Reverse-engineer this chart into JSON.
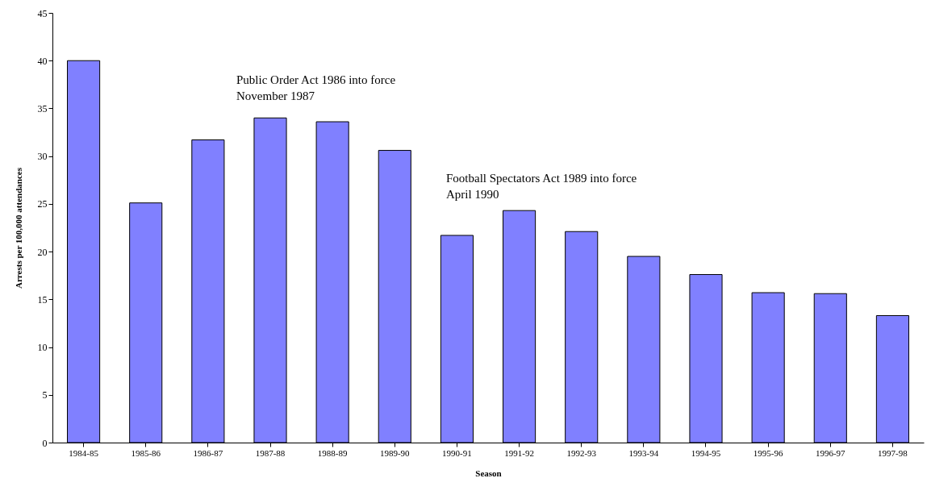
{
  "chart_data": {
    "type": "bar",
    "xlabel": "Season",
    "ylabel": "Arrests per 100,000 attendances",
    "categories": [
      "1984-85",
      "1985-86",
      "1986-87",
      "1987-88",
      "1988-89",
      "1989-90",
      "1990-91",
      "1991-92",
      "1992-93",
      "1993-94",
      "1994-95",
      "1995-96",
      "1996-97",
      "1997-98"
    ],
    "values": [
      40,
      25.1,
      31.7,
      34,
      33.6,
      30.6,
      21.7,
      24.3,
      22.1,
      19.5,
      17.6,
      15.7,
      15.6,
      13.3
    ],
    "color": "#8080ff",
    "ylim": [
      0,
      45
    ],
    "yticks": [
      0,
      5,
      10,
      15,
      20,
      25,
      30,
      35,
      40,
      45
    ],
    "grid": false,
    "annotations": [
      "Public Order Act 1986 into force\nNovember 1987",
      "Football Spectators Act 1989 into force\nApril 1990"
    ]
  }
}
